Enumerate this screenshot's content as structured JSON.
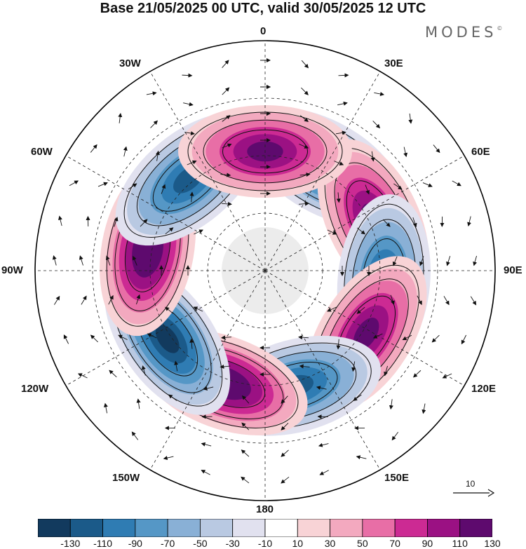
{
  "title": "Base 21/05/2025 00 UTC, valid 30/05/2025 12 UTC",
  "brand": "MODES",
  "brand_mark": "©",
  "longitude_labels": {
    "lon_0": "0",
    "lon_30e": "30E",
    "lon_60e": "60E",
    "lon_90e": "90E",
    "lon_120e": "120E",
    "lon_150e": "150E",
    "lon_180": "180",
    "lon_150w": "150W",
    "lon_120w": "120W",
    "lon_90w": "90W",
    "lon_60w": "60W",
    "lon_30w": "30W"
  },
  "vector_scale_label": "10",
  "colorbar": {
    "ticks": [
      "-130",
      "-110",
      "-90",
      "-70",
      "-50",
      "-30",
      "-10",
      "10",
      "30",
      "50",
      "70",
      "90",
      "110",
      "130"
    ],
    "colors": [
      "#123a5e",
      "#1b5a89",
      "#2f7cb3",
      "#5597c6",
      "#89b0d6",
      "#b9c9e2",
      "#e1e1ef",
      "#ffffff",
      "#f8d3d6",
      "#f3a9bf",
      "#e86ea6",
      "#cc2a93",
      "#9b1183",
      "#5e0a6e"
    ]
  },
  "anomaly_centers": [
    {
      "sign": "negative",
      "lon": 30,
      "amp": 130
    },
    {
      "sign": "positive",
      "lon": 65,
      "amp": 120
    },
    {
      "sign": "negative",
      "lon": 95,
      "amp": 120
    },
    {
      "sign": "positive",
      "lon": 122,
      "amp": 110
    },
    {
      "sign": "negative",
      "lon": 165,
      "amp": 110
    },
    {
      "sign": "positive",
      "lon": -160,
      "amp": 130
    },
    {
      "sign": "negative",
      "lon": -125,
      "amp": 130
    },
    {
      "sign": "positive",
      "lon": -80,
      "amp": 130
    },
    {
      "sign": "negative",
      "lon": -40,
      "amp": 120
    },
    {
      "sign": "positive",
      "lon": 0,
      "amp": 120
    }
  ]
}
